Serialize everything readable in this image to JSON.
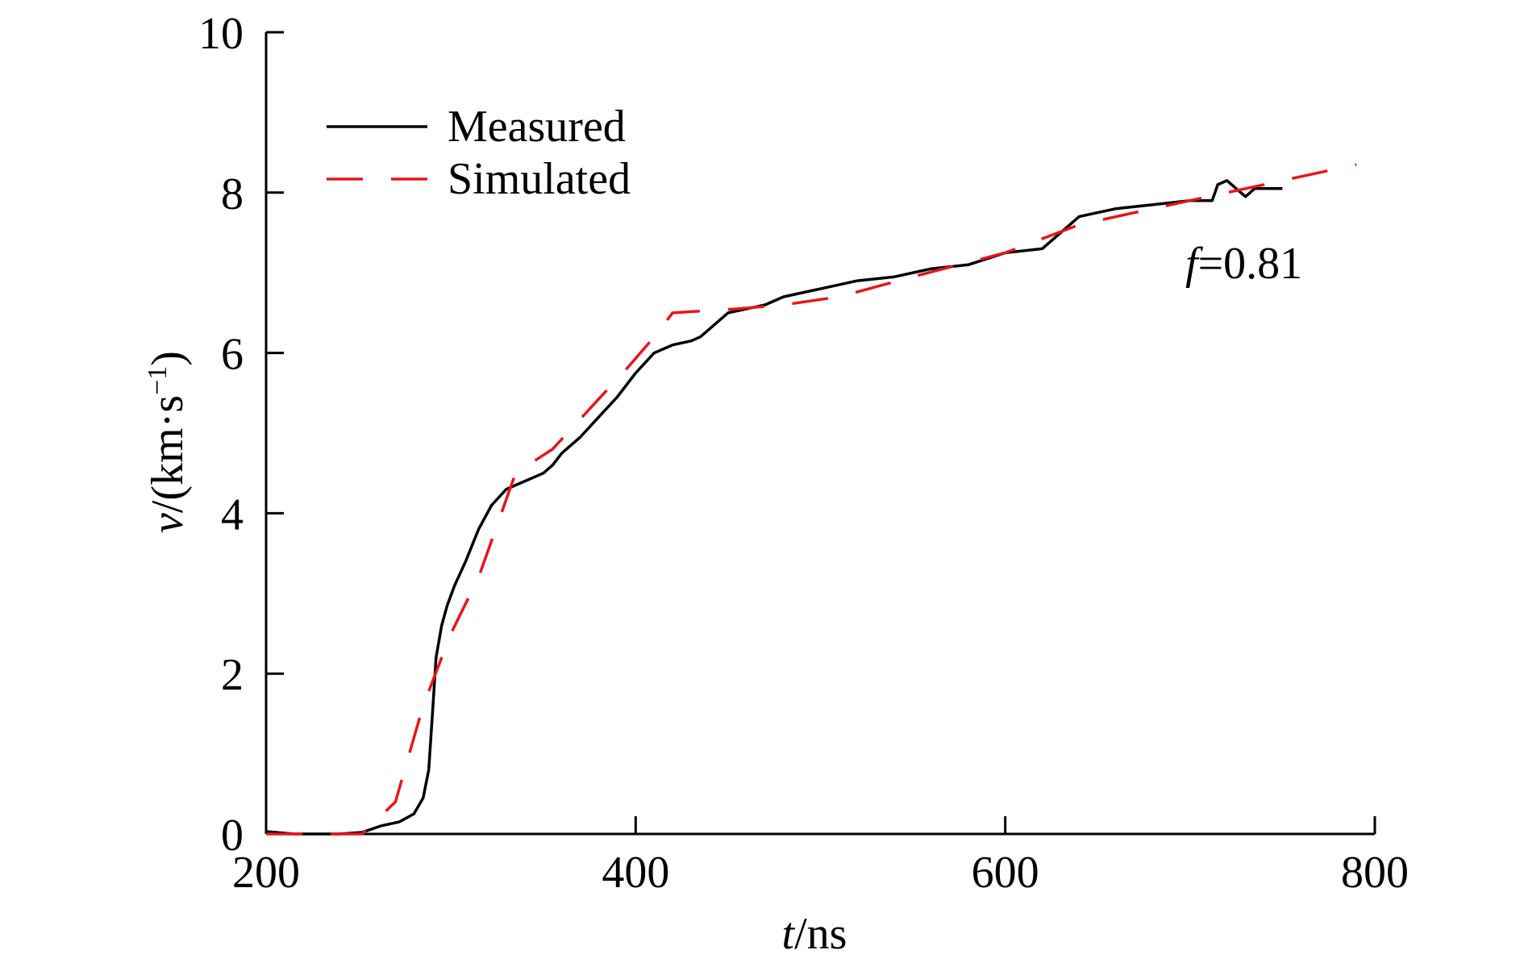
{
  "chart_data": {
    "type": "line",
    "xlabel": {
      "italic": "t",
      "rest": "/ns"
    },
    "ylabel": {
      "italic": "v",
      "rest": "/(km·s",
      "sup": "−1",
      "close": ")"
    },
    "xlim": [
      200,
      800
    ],
    "ylim": [
      0,
      10
    ],
    "xticks": [
      "200",
      "400",
      "600",
      "800"
    ],
    "yticks": [
      "0",
      "2",
      "4",
      "6",
      "8",
      "10"
    ],
    "grid": false,
    "legend": "top-left",
    "annotation": {
      "italic": "f",
      "rest": "=0.81"
    },
    "series": [
      {
        "name": "Measured",
        "color": "#000000",
        "style": "solid",
        "x": [
          200,
          215,
          240,
          252,
          262,
          272,
          280,
          285,
          288,
          290,
          292,
          295,
          298,
          302,
          308,
          315,
          322,
          330,
          340,
          350,
          355,
          360,
          370,
          380,
          390,
          400,
          410,
          420,
          430,
          435,
          440,
          450,
          460,
          470,
          480,
          490,
          500,
          510,
          520,
          540,
          560,
          580,
          600,
          620,
          630,
          640,
          650,
          660,
          680,
          700,
          712,
          715,
          720,
          725,
          730,
          735,
          740,
          750
        ],
        "y": [
          0.03,
          0.0,
          0.0,
          0.02,
          0.1,
          0.15,
          0.25,
          0.45,
          0.8,
          1.5,
          2.2,
          2.6,
          2.85,
          3.1,
          3.4,
          3.8,
          4.1,
          4.3,
          4.4,
          4.5,
          4.6,
          4.75,
          4.95,
          5.2,
          5.45,
          5.75,
          6.0,
          6.1,
          6.15,
          6.2,
          6.3,
          6.5,
          6.55,
          6.6,
          6.7,
          6.75,
          6.8,
          6.85,
          6.9,
          6.95,
          7.05,
          7.1,
          7.25,
          7.3,
          7.5,
          7.7,
          7.75,
          7.8,
          7.85,
          7.9,
          7.9,
          8.1,
          8.15,
          8.05,
          7.95,
          8.05,
          8.05,
          8.05
        ]
      },
      {
        "name": "Simulated",
        "color": "#e8151b",
        "style": "dashed",
        "x": [
          200,
          252,
          270,
          285,
          300,
          315,
          335,
          355,
          375,
          395,
          410,
          420,
          455,
          480,
          510,
          550,
          600,
          640,
          670,
          700,
          740,
          790
        ],
        "y": [
          0.0,
          0.0,
          0.4,
          1.6,
          2.5,
          3.2,
          4.5,
          4.8,
          5.3,
          5.8,
          6.2,
          6.5,
          6.55,
          6.6,
          6.7,
          6.95,
          7.25,
          7.6,
          7.75,
          7.9,
          8.1,
          8.35
        ]
      }
    ]
  }
}
